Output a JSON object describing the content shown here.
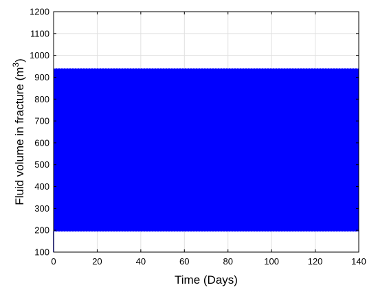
{
  "chart_data": {
    "type": "line",
    "xlabel": "Time (Days)",
    "ylabel_main": "Fluid volume in fracture (m",
    "ylabel_sup": "3",
    "ylabel_end": ")",
    "xlim": [
      0,
      140
    ],
    "ylim": [
      100,
      1200
    ],
    "xticks": [
      0,
      20,
      40,
      60,
      80,
      100,
      120,
      140
    ],
    "yticks": [
      100,
      200,
      300,
      400,
      500,
      600,
      700,
      800,
      900,
      1000,
      1100,
      1200
    ],
    "grid": true,
    "series": [
      {
        "color": "#0000ff",
        "pattern": "rapid oscillation",
        "start": {
          "x": 0,
          "y": 100
        },
        "min": 195,
        "max": 940,
        "x_range": [
          0,
          140
        ]
      }
    ]
  }
}
